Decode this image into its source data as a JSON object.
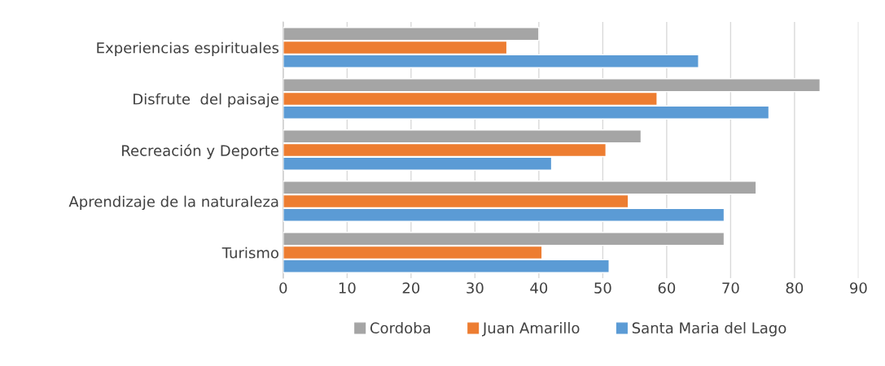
{
  "chart_data": {
    "type": "bar",
    "orientation": "horizontal",
    "categories": [
      "Experiencias espirituales",
      "Disfrute  del paisaje",
      "Recreación y Deporte",
      "Aprendizaje de la naturaleza",
      "Turismo"
    ],
    "series": [
      {
        "name": "Cordoba",
        "color": "#a5a5a5",
        "values": [
          40,
          84,
          56,
          74,
          69
        ]
      },
      {
        "name": "Juan Amarillo",
        "color": "#ed7d31",
        "values": [
          35,
          58.5,
          50.5,
          54,
          40.5
        ]
      },
      {
        "name": "Santa Maria del Lago",
        "color": "#5b9bd5",
        "values": [
          65,
          76,
          42,
          69,
          51
        ]
      }
    ],
    "xlim": [
      0,
      90
    ],
    "xticks": [
      0,
      10,
      20,
      30,
      40,
      50,
      60,
      70,
      80,
      90
    ],
    "grid": "x",
    "legend": "bottom"
  }
}
